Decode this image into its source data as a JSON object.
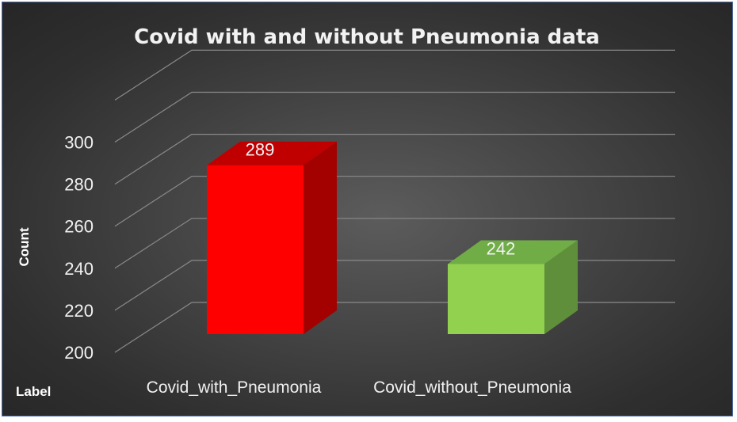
{
  "chart_data": {
    "type": "bar",
    "title": "Covid with and without Pneumonia data",
    "xlabel": "Label",
    "ylabel": "Count",
    "categories": [
      "Covid_with_Pneumonia",
      "Covid_without_Pneumonia"
    ],
    "values": [
      289,
      242
    ],
    "yticks": [
      200,
      220,
      240,
      260,
      280,
      300
    ],
    "ylim": [
      200,
      320
    ],
    "grid": true,
    "legend": "none",
    "colors": {
      "bars": [
        "#ff0000",
        "#92d050"
      ],
      "bar_tops": [
        "#c00000",
        "#70ad47"
      ],
      "bar_sides": [
        "#a30000",
        "#5f8f3a"
      ]
    }
  }
}
